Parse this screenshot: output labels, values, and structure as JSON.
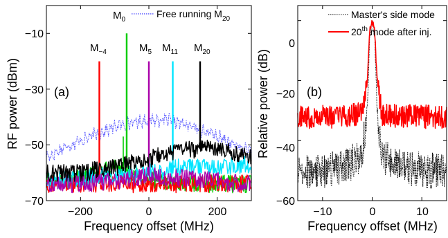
{
  "chart_data": [
    {
      "type": "line",
      "panel_label": "(a)",
      "xlabel": "Frequency offset (MHz)",
      "ylabel": "RF power (dBm)",
      "xlim": [
        -300,
        300
      ],
      "ylim": [
        -70,
        0
      ],
      "xticks": [
        -200,
        0,
        200
      ],
      "xtick_labels": [
        "−200",
        "0",
        "200"
      ],
      "yticks": [
        -70,
        -50,
        -30,
        -10
      ],
      "ytick_labels": [
        "−70",
        "−50",
        "−30",
        "−10"
      ],
      "grid": false,
      "legend": {
        "placement": "top-right",
        "entries": [
          "Free running M20"
        ]
      },
      "series": [
        {
          "name": "Free running M20",
          "color": "#3a3aff",
          "style": "dotted",
          "x": [
            -290,
            -250,
            -200,
            -150,
            -100,
            -50,
            0,
            50,
            100,
            150,
            200,
            250,
            290
          ],
          "y": [
            -54,
            -51,
            -48.5,
            -46,
            -43.5,
            -42,
            -41,
            -41,
            -42.5,
            -44.5,
            -47,
            -50,
            -52
          ]
        },
        {
          "name": "M−4",
          "color": "#ff0000",
          "peak_x": -145,
          "peak_y": -20,
          "x": [
            -290,
            -200,
            -100,
            0,
            100,
            200,
            290
          ],
          "y": [
            -64,
            -64,
            -64,
            -64,
            -64,
            -64,
            -64
          ]
        },
        {
          "name": "M0",
          "color": "#00cc00",
          "peak_x": -65,
          "peak_y": -10,
          "x": [
            -290,
            -200,
            -100,
            0,
            100,
            200,
            290
          ],
          "y": [
            -63,
            -62,
            -58,
            -62,
            -64,
            -64,
            -64
          ]
        },
        {
          "name": "M5",
          "color": "#aa00aa",
          "peak_x": 0,
          "peak_y": -20,
          "x": [
            -290,
            -200,
            -100,
            0,
            100,
            200,
            290
          ],
          "y": [
            -64,
            -64,
            -63,
            -61,
            -62,
            -63,
            -64
          ]
        },
        {
          "name": "M11",
          "color": "#00e5ff",
          "peak_x": 70,
          "peak_y": -20,
          "x": [
            -290,
            -200,
            -100,
            0,
            100,
            200,
            290
          ],
          "y": [
            -63,
            -62,
            -61,
            -60,
            -58,
            -58,
            -57
          ]
        },
        {
          "name": "M20",
          "color": "#000000",
          "peak_x": 150,
          "peak_y": -20,
          "x": [
            -290,
            -200,
            -100,
            0,
            100,
            200,
            290
          ],
          "y": [
            -60,
            -60,
            -58,
            -55,
            -52,
            -51,
            -54
          ]
        }
      ],
      "mode_labels": [
        {
          "main": "M",
          "sub": "−4"
        },
        {
          "main": "M",
          "sub": "0"
        },
        {
          "main": "M",
          "sub": "5"
        },
        {
          "main": "M",
          "sub": "11"
        },
        {
          "main": "M",
          "sub": "20"
        }
      ],
      "legend_text": {
        "main": "Free running M",
        "sub": "20"
      }
    },
    {
      "type": "line",
      "panel_label": "(b)",
      "xlabel": "Frequency offset (MHz)",
      "ylabel": "Relative power (dB)",
      "xlim": [
        -15,
        15
      ],
      "ylim": [
        -60,
        5
      ],
      "xticks": [
        -10,
        0,
        10
      ],
      "xtick_labels": [
        "−10",
        "0",
        "10"
      ],
      "yticks": [
        -60,
        -40,
        -20,
        0
      ],
      "ytick_labels": [
        "−60",
        "−40",
        "−20",
        "0"
      ],
      "grid": false,
      "legend": {
        "placement": "top-right",
        "entries": [
          "Master's side mode",
          "20th mode after inj."
        ]
      },
      "series": [
        {
          "name": "Master's side mode",
          "color": "#000000",
          "style": "dotted",
          "x": [
            -15,
            -10,
            -5,
            -2,
            -1,
            -0.5,
            0,
            0.5,
            1,
            2,
            5,
            10,
            15
          ],
          "y": [
            -50,
            -50,
            -48,
            -45,
            -30,
            -5,
            0,
            -5,
            -30,
            -45,
            -48,
            -50,
            -50
          ]
        },
        {
          "name": "20th mode after inj.",
          "color": "#ff0000",
          "style": "solid",
          "x": [
            -15,
            -10,
            -5,
            -2,
            -1,
            -0.5,
            0,
            0.5,
            1,
            2,
            5,
            10,
            15
          ],
          "y": [
            -32,
            -32,
            -32,
            -31,
            -20,
            -3,
            0,
            -3,
            -20,
            -31,
            -32,
            -32,
            -32
          ]
        }
      ],
      "legend_text": [
        {
          "main": "Master's side mode"
        },
        {
          "pre": "20",
          "sup": "th",
          "post": " mode after inj."
        }
      ]
    }
  ]
}
